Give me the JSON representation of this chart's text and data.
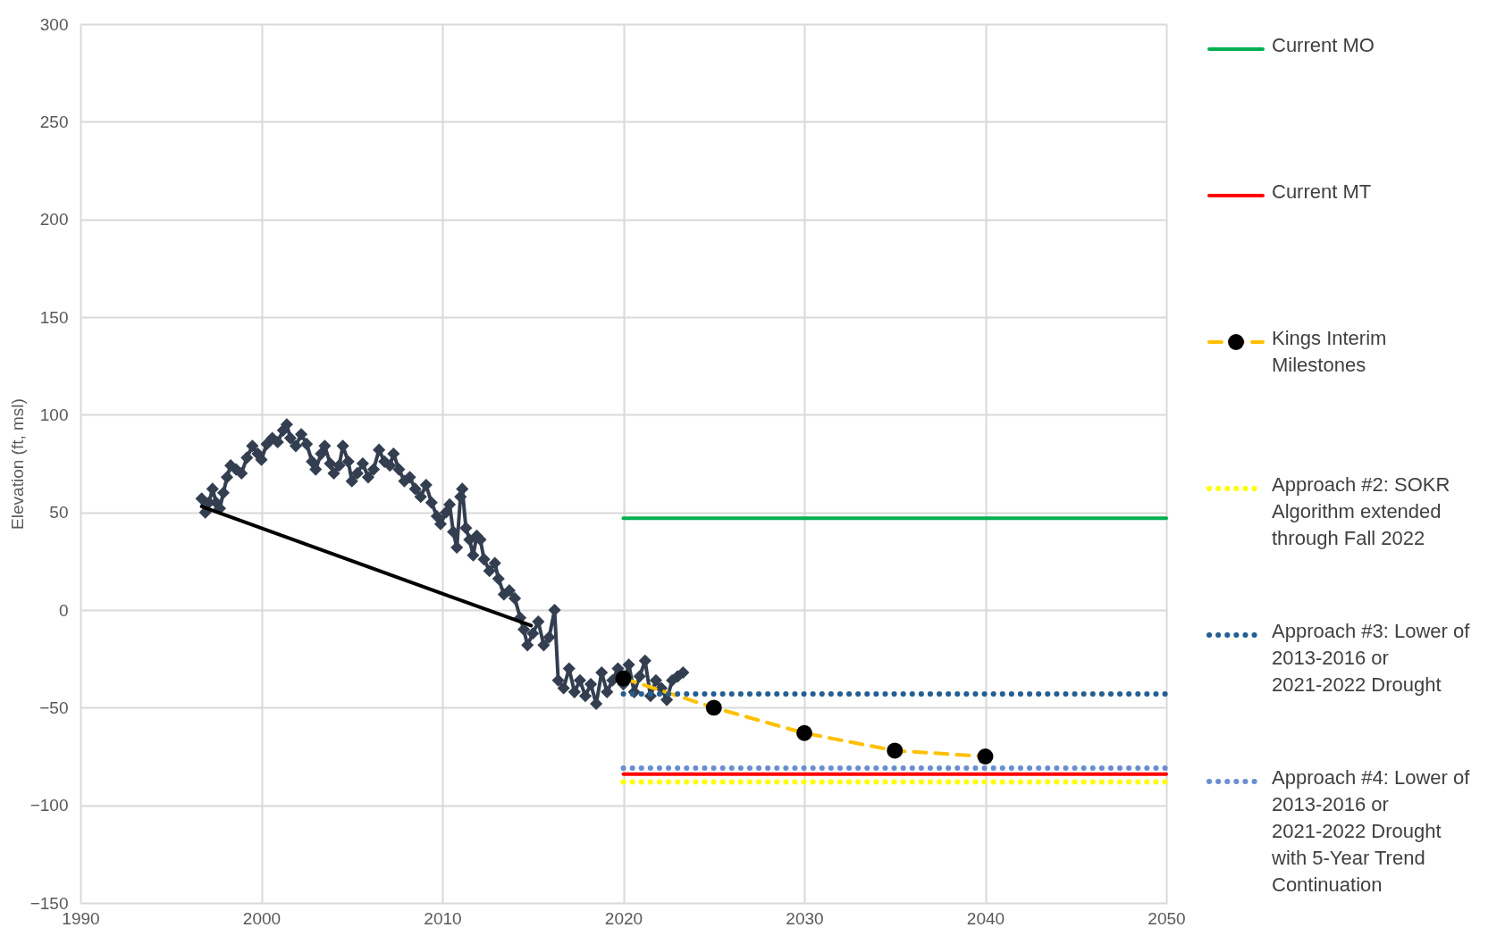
{
  "chart_data": {
    "type": "line",
    "ylabel": "Elevation (ft, msl)",
    "xlim": [
      1990,
      2050
    ],
    "xticks": [
      1990,
      2000,
      2010,
      2020,
      2030,
      2040,
      2050
    ],
    "ylim": [
      -150,
      300
    ],
    "yticks": [
      -150,
      -100,
      -50,
      0,
      50,
      100,
      150,
      200,
      250,
      300
    ],
    "grid": true,
    "legend": "right",
    "series": [
      {
        "name": "Current MO",
        "color": "#00b050",
        "x": [
          2020,
          2050
        ],
        "values": [
          47,
          47
        ],
        "line_style": "solid",
        "marker": "none"
      },
      {
        "name": "Current MT",
        "color": "#ff0000",
        "x": [
          2020,
          2050
        ],
        "values": [
          -84,
          -84
        ],
        "line_style": "solid",
        "marker": "none"
      },
      {
        "color": "#333f50",
        "marker": "diamond",
        "line_style": "solid",
        "x": [
          1996.7,
          1996.9,
          1997.1,
          1997.3,
          1997.5,
          1997.7,
          1997.9,
          1998.1,
          1998.3,
          1998.6,
          1998.9,
          1999.2,
          1999.5,
          1999.8,
          2000.0,
          2000.3,
          2000.6,
          2000.9,
          2001.2,
          2001.4,
          2001.6,
          2001.9,
          2002.2,
          2002.5,
          2002.8,
          2003.0,
          2003.3,
          2003.5,
          2003.8,
          2004.0,
          2004.3,
          2004.5,
          2004.8,
          2005.0,
          2005.3,
          2005.6,
          2005.9,
          2006.2,
          2006.5,
          2006.8,
          2007.1,
          2007.3,
          2007.6,
          2007.9,
          2008.2,
          2008.5,
          2008.8,
          2009.1,
          2009.4,
          2009.7,
          2009.9,
          2010.2,
          2010.4,
          2010.6,
          2010.8,
          2011.0,
          2011.1,
          2011.3,
          2011.5,
          2011.7,
          2011.9,
          2012.1,
          2012.3,
          2012.6,
          2012.9,
          2013.1,
          2013.4,
          2013.7,
          2014.0,
          2014.3,
          2014.5,
          2014.7,
          2015.0,
          2015.3,
          2015.6,
          2015.9,
          2016.2,
          2016.4,
          2016.7,
          2017.0,
          2017.3,
          2017.6,
          2017.9,
          2018.2,
          2018.5,
          2018.8,
          2019.1,
          2019.4,
          2019.7,
          2020.0,
          2020.3,
          2020.6,
          2020.9,
          2021.2,
          2021.5,
          2021.8,
          2022.1,
          2022.4,
          2022.7,
          2023.0,
          2023.3
        ],
        "values": [
          57,
          50,
          55,
          62,
          55,
          52,
          60,
          68,
          74,
          72,
          70,
          78,
          84,
          80,
          77,
          85,
          88,
          86,
          92,
          95,
          88,
          84,
          90,
          85,
          76,
          72,
          80,
          84,
          75,
          70,
          74,
          84,
          76,
          66,
          70,
          75,
          68,
          72,
          82,
          76,
          74,
          80,
          72,
          66,
          68,
          62,
          58,
          64,
          55,
          48,
          44,
          50,
          54,
          40,
          32,
          58,
          62,
          42,
          36,
          28,
          38,
          36,
          26,
          20,
          24,
          16,
          8,
          10,
          6,
          -4,
          -10,
          -18,
          -12,
          -6,
          -18,
          -14,
          0,
          -36,
          -40,
          -30,
          -42,
          -36,
          -44,
          -38,
          -48,
          -32,
          -42,
          -36,
          -30,
          -38,
          -28,
          -42,
          -34,
          -26,
          -44,
          -36,
          -40,
          -46,
          -36,
          -34,
          -32
        ]
      },
      {
        "color": "#000000",
        "marker": "none",
        "line_style": "solid",
        "x": [
          1996.7,
          2014.9
        ],
        "values": [
          53,
          -8
        ]
      },
      {
        "name": "Kings Interim Milestones",
        "color": "#ffc000",
        "marker": "circle",
        "line_style": "dashed",
        "x": [
          2020,
          2025,
          2030,
          2035,
          2040
        ],
        "values": [
          -35,
          -50,
          -63,
          -72,
          -75
        ]
      },
      {
        "name": "Approach #2: SOKR Algorithm extended through Fall 2022",
        "color": "#ffff00",
        "x": [
          2020,
          2050
        ],
        "values": [
          -88,
          -88
        ],
        "line_style": "dotted",
        "marker": "none"
      },
      {
        "name": "Approach #3: Lower of 2013-2016 or 2021-2022 Drought",
        "color": "#255e91",
        "x": [
          2020,
          2050
        ],
        "values": [
          -43,
          -43
        ],
        "line_style": "dotted",
        "marker": "none"
      },
      {
        "name": "Approach #4: Lower of 2013-2016 or 2021-2022 Drought with 5-Year Trend Continuation",
        "color": "#698ed0",
        "x": [
          2020,
          2050
        ],
        "values": [
          -81,
          -81
        ],
        "line_style": "dotted",
        "marker": "none"
      }
    ]
  }
}
